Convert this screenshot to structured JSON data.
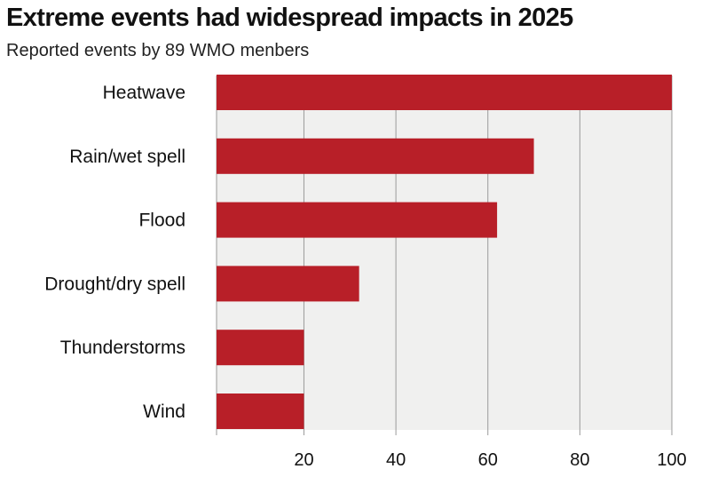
{
  "title": "Extreme events had widespread impacts in 2025",
  "subtitle": "Reported events by 89 WMO menbers",
  "colors": {
    "bar": "#b81f28",
    "plot_background": "#f0f0ef",
    "grid": "#9a9a9a"
  },
  "chart_data": {
    "type": "bar",
    "orientation": "horizontal",
    "title": "Extreme events had widespread impacts in 2025",
    "subtitle": "Reported events by 89 WMO menbers",
    "categories": [
      "Heatwave",
      "Rain/wet spell",
      "Flood",
      "Drought/dry spell",
      "Thunderstorms",
      "Wind"
    ],
    "values": [
      100,
      70,
      62,
      32,
      20,
      20
    ],
    "xlim": [
      1,
      100
    ],
    "xticks": [
      20,
      40,
      60,
      80,
      100
    ],
    "xlabel": "",
    "ylabel": "",
    "grid": true,
    "legend": "none"
  }
}
